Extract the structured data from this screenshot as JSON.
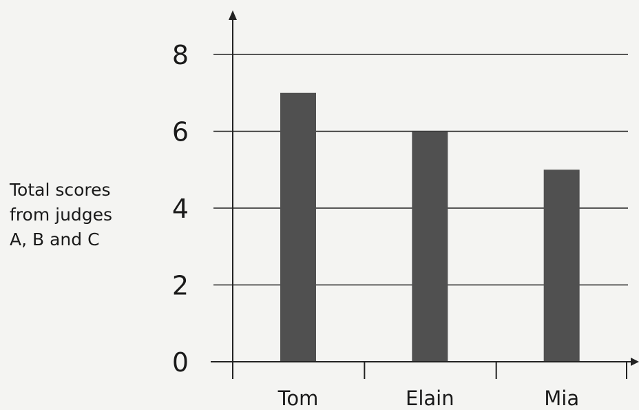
{
  "chart_data": {
    "type": "bar",
    "categories": [
      "Tom",
      "Elain",
      "Mia"
    ],
    "values": [
      7,
      6,
      5
    ],
    "title": "",
    "xlabel": "",
    "ylabel_lines": [
      "Total scores",
      "from judges",
      "A, B and C"
    ],
    "ylim": [
      0,
      8
    ],
    "yticks": [
      0,
      2,
      4,
      6,
      8
    ],
    "grid": true,
    "bar_color": "#505050",
    "axis_color": "#222222"
  }
}
